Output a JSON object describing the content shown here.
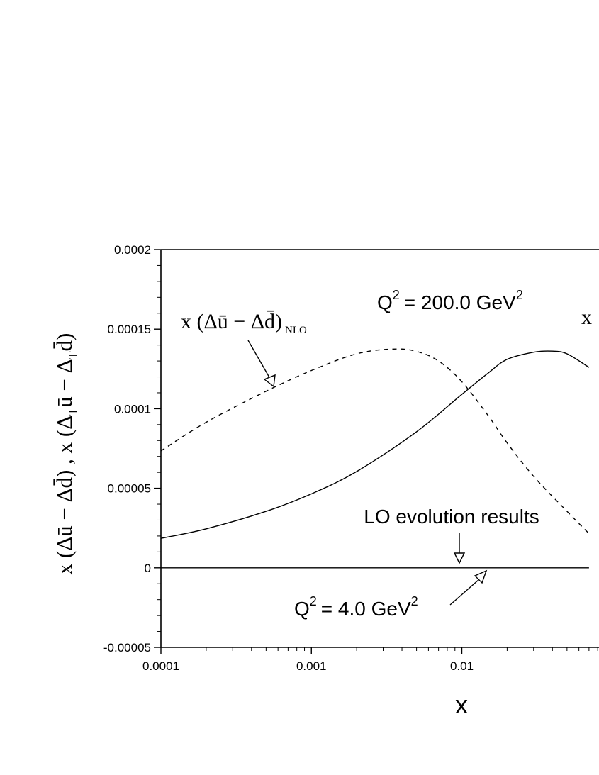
{
  "chart_data": {
    "type": "line",
    "xscale": "log",
    "xlim": [
      0.0001,
      0.07
    ],
    "ylim": [
      -5e-05,
      0.0002
    ],
    "x_ticks": [
      "0.0001",
      "0.001",
      "0.01"
    ],
    "y_ticks": [
      "-0.00005",
      "0",
      "0.00005",
      "0.0001",
      "0.00015",
      "0.0002"
    ],
    "xlabel": "x",
    "ylabel": "x (Δū − Δd̄)  ,  x (Δ_T ū − Δ_T d̄)",
    "series": [
      {
        "name": "x (Δū − Δd̄)_NLO",
        "style": "dashed",
        "x": [
          0.0001,
          0.0002,
          0.0005,
          0.001,
          0.002,
          0.0035,
          0.005,
          0.007,
          0.01,
          0.015,
          0.02,
          0.03,
          0.05,
          0.07
        ],
        "y": [
          7.35e-05,
          9.15e-05,
          0.000111,
          0.000124,
          0.0001345,
          0.0001375,
          0.000136,
          0.00013,
          0.000117,
          9.55e-05,
          7.85e-05,
          5.75e-05,
          3.55e-05,
          2.15e-05
        ]
      },
      {
        "name": "",
        "style": "solid",
        "x": [
          0.0001,
          0.0002,
          0.0005,
          0.001,
          0.002,
          0.005,
          0.01,
          0.015,
          0.02,
          0.03,
          0.04,
          0.05,
          0.07
        ],
        "y": [
          1.85e-05,
          2.45e-05,
          3.55e-05,
          4.65e-05,
          6.05e-05,
          8.55e-05,
          0.000109,
          0.0001225,
          0.000131,
          0.0001355,
          0.0001362,
          0.0001345,
          0.000126
        ]
      },
      {
        "name": "LO evolution results",
        "style": "solid",
        "x": [
          0.0001,
          0.07
        ],
        "y": [
          0,
          0
        ]
      }
    ],
    "annotations": {
      "q2_high_label": "Q",
      "q2_high_value": "= 200.0 GeV",
      "q2_low_label": "Q",
      "q2_low_value": "= 4.0 GeV",
      "superscript": "2",
      "lo_label": "LO evolution results",
      "nlo_label": "x (Δū − Δd̄)",
      "nlo_subscript": "NLO",
      "cut_label": "x"
    }
  }
}
